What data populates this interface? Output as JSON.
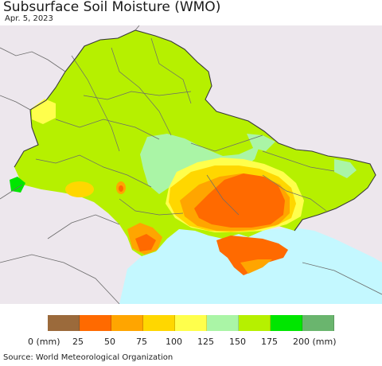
{
  "header": {
    "title": "Subsurface Soil Moisture (WMO)",
    "date": "Apr. 5, 2023"
  },
  "legend": {
    "ticks": [
      "0 (mm)",
      "25",
      "50",
      "75",
      "100",
      "125",
      "150",
      "175",
      "200 (mm)"
    ],
    "colors": [
      "#9b6a3b",
      "#ff6a00",
      "#ffa500",
      "#ffd700",
      "#ffff4c",
      "#aaf5a6",
      "#b6f000",
      "#00e600",
      "#6ab56e"
    ]
  },
  "map": {
    "colors": {
      "sea": "#c4f8ff",
      "outside_land": "#ede7ed",
      "country_base": "#b6f000",
      "class_150": "#aaf5a6",
      "class_125": "#ffff4c",
      "class_100": "#ffd700",
      "class_75": "#ffa500",
      "class_50": "#ff6a00",
      "class_175": "#00e600"
    }
  },
  "footer": {
    "source": "Source: World Meteorological Organization"
  }
}
